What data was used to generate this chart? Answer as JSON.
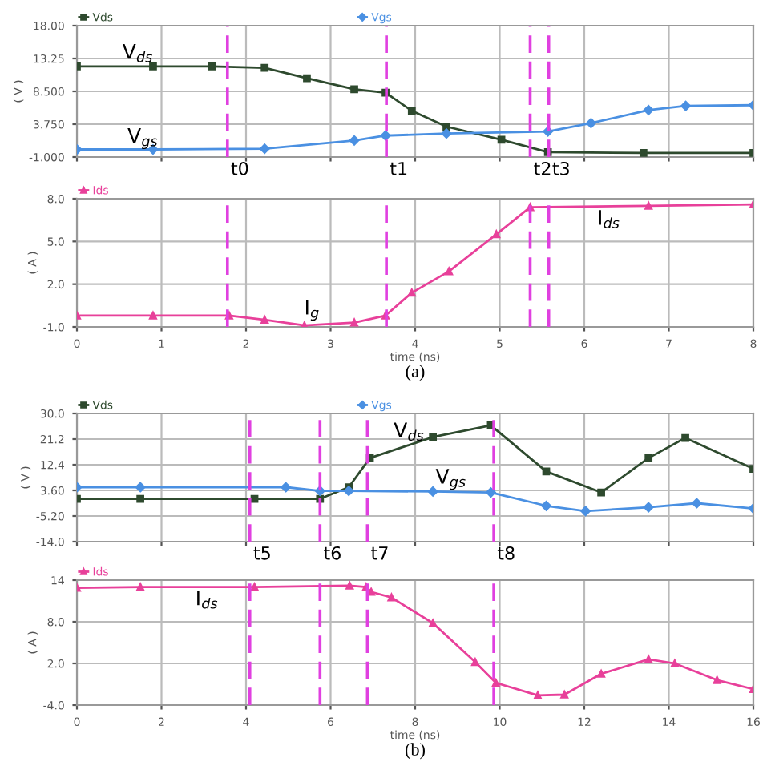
{
  "chart_data": [
    {
      "type": "line",
      "ylabel": "( V )",
      "legend": "top",
      "grid": true,
      "tick_labels": "y",
      "line_style": "solid",
      "xlim": [
        0,
        8
      ],
      "xticks": [
        0,
        1,
        2,
        3,
        4,
        5,
        6,
        7,
        8
      ],
      "ylim": [
        -1,
        18
      ],
      "yticks": [
        {
          "value": -1,
          "label": "-1.000"
        },
        {
          "value": 3.75,
          "label": "3.750"
        },
        {
          "value": 8.5,
          "label": "8.500"
        },
        {
          "value": 13.25,
          "label": "13.25"
        },
        {
          "value": 18,
          "label": "18.00"
        }
      ],
      "series": [
        {
          "name": "Vds",
          "color": "#2e4a2e",
          "marker": "square",
          "x": [
            0,
            0.9,
            1.6,
            2.22,
            2.72,
            3.28,
            3.65,
            3.96,
            4.37,
            5.02,
            5.57,
            6.7,
            8
          ],
          "values": [
            12.1,
            12.1,
            12.1,
            11.9,
            10.4,
            8.8,
            8.3,
            5.7,
            3.4,
            1.5,
            -0.3,
            -0.4,
            -0.4
          ]
        },
        {
          "name": "Vgs",
          "color": "#4a90e2",
          "marker": "diamond",
          "x": [
            0,
            0.9,
            2.22,
            3.28,
            3.65,
            4.37,
            5.57,
            6.08,
            6.76,
            7.2,
            8
          ],
          "values": [
            0.1,
            0.1,
            0.2,
            1.4,
            2.1,
            2.4,
            2.7,
            3.9,
            5.8,
            6.4,
            6.5
          ]
        }
      ],
      "ref_lines": [
        {
          "axis": "x",
          "value": 1.78,
          "label": "t0",
          "color": "#e040e0",
          "line_style": "dashed"
        },
        {
          "axis": "x",
          "value": 3.66,
          "label": "t1",
          "color": "#e040e0",
          "line_style": "dashed"
        },
        {
          "axis": "x",
          "value": 5.36,
          "label": "t2",
          "color": "#e040e0",
          "line_style": "dashed"
        },
        {
          "axis": "x",
          "value": 5.58,
          "label": "t3",
          "color": "#e040e0",
          "line_style": "dashed"
        }
      ],
      "annotations": [
        "V$_{ds}$",
        "V$_{gs}$"
      ]
    },
    {
      "type": "line",
      "ylabel": "( A )",
      "xlabel": "time (ns)",
      "legend": "top",
      "grid": true,
      "line_style": "solid",
      "xlim": [
        0,
        8
      ],
      "xticks": [
        0,
        1,
        2,
        3,
        4,
        5,
        6,
        7,
        8
      ],
      "ylim": [
        -1,
        8
      ],
      "yticks": [
        {
          "value": -1,
          "label": "-1.0"
        },
        {
          "value": 2,
          "label": "2.0"
        },
        {
          "value": 5,
          "label": "5.0"
        },
        {
          "value": 8,
          "label": "8.0"
        }
      ],
      "series": [
        {
          "name": "Ids",
          "color": "#e8409a",
          "marker": "triangle",
          "x": [
            0,
            0.9,
            1.8,
            2.22,
            2.69,
            3.28,
            3.65,
            3.96,
            4.4,
            4.96,
            5.36,
            6.76,
            8
          ],
          "values": [
            -0.2,
            -0.2,
            -0.2,
            -0.5,
            -0.9,
            -0.7,
            -0.2,
            1.4,
            2.9,
            5.5,
            7.4,
            7.5,
            7.6
          ]
        }
      ],
      "ref_lines": [
        {
          "axis": "x",
          "value": 1.78,
          "color": "#e040e0",
          "line_style": "dashed"
        },
        {
          "axis": "x",
          "value": 3.66,
          "color": "#e040e0",
          "line_style": "dashed"
        },
        {
          "axis": "x",
          "value": 5.36,
          "color": "#e040e0",
          "line_style": "dashed"
        },
        {
          "axis": "x",
          "value": 5.58,
          "color": "#e040e0",
          "line_style": "dashed"
        }
      ],
      "annotations": [
        "I$_{ds}$",
        "I$_{g}$",
        "(a)"
      ]
    },
    {
      "type": "line",
      "ylabel": "( V )",
      "legend": "top",
      "grid": true,
      "tick_labels": "y",
      "line_style": "solid",
      "xlim": [
        0,
        16
      ],
      "xticks": [
        0,
        2,
        4,
        6,
        8,
        10,
        12,
        14,
        16
      ],
      "ylim": [
        -14,
        30
      ],
      "yticks": [
        {
          "value": -14,
          "label": "-14.0"
        },
        {
          "value": -5.2,
          "label": "-5.20"
        },
        {
          "value": 3.6,
          "label": "3.60"
        },
        {
          "value": 12.4,
          "label": "12.4"
        },
        {
          "value": 21.2,
          "label": "21.2"
        },
        {
          "value": 30,
          "label": "30.0"
        }
      ],
      "series": [
        {
          "name": "Vds",
          "color": "#2e4a2e",
          "marker": "square",
          "x": [
            0,
            1.5,
            4.2,
            5.75,
            6.43,
            6.93,
            8.42,
            9.79,
            11.1,
            12.4,
            13.52,
            14.39,
            16
          ],
          "values": [
            0.7,
            0.7,
            0.7,
            0.7,
            4.7,
            14.7,
            21.9,
            25.9,
            10.1,
            2.9,
            14.7,
            21.6,
            11.0
          ]
        },
        {
          "name": "Vgs",
          "color": "#4a90e2",
          "marker": "diamond",
          "x": [
            0,
            1.5,
            4.94,
            5.75,
            6.43,
            8.42,
            9.79,
            11.1,
            12.03,
            13.52,
            14.66,
            16
          ],
          "values": [
            4.7,
            4.7,
            4.7,
            3.4,
            3.4,
            3.2,
            2.9,
            -1.7,
            -3.5,
            -2.2,
            -0.8,
            -2.6
          ]
        }
      ],
      "ref_lines": [
        {
          "axis": "x",
          "value": 4.09,
          "label": "t5",
          "color": "#e040e0",
          "line_style": "dashed"
        },
        {
          "axis": "x",
          "value": 5.75,
          "label": "t6",
          "color": "#e040e0",
          "line_style": "dashed"
        },
        {
          "axis": "x",
          "value": 6.87,
          "label": "t7",
          "color": "#e040e0",
          "line_style": "dashed"
        },
        {
          "axis": "x",
          "value": 9.86,
          "label": "t8",
          "color": "#e040e0",
          "line_style": "dashed"
        }
      ],
      "annotations": [
        "V$_{ds}$",
        "V$_{gs}$"
      ]
    },
    {
      "type": "line",
      "ylabel": "( A )",
      "xlabel": "time (ns)",
      "legend": "top",
      "grid": true,
      "line_style": "solid",
      "xlim": [
        0,
        16
      ],
      "xticks": [
        0,
        2,
        4,
        6,
        8,
        10,
        12,
        14,
        16
      ],
      "ylim": [
        -4,
        14
      ],
      "yticks": [
        {
          "value": -4,
          "label": "-4.0"
        },
        {
          "value": 2,
          "label": "2.0"
        },
        {
          "value": 8,
          "label": "8.0"
        },
        14
      ],
      "series": [
        {
          "name": "Ids",
          "color": "#e8409a",
          "marker": "triangle",
          "x": [
            0,
            1.5,
            4.2,
            6.45,
            6.84,
            6.96,
            7.44,
            8.42,
            9.42,
            9.91,
            10.9,
            11.53,
            12.4,
            13.52,
            14.14,
            15.14,
            16
          ],
          "values": [
            12.9,
            13.0,
            13.0,
            13.2,
            13.0,
            12.3,
            11.5,
            7.8,
            2.2,
            -0.8,
            -2.6,
            -2.5,
            0.5,
            2.6,
            2.0,
            -0.4,
            -1.7
          ]
        }
      ],
      "ref_lines": [
        {
          "axis": "x",
          "value": 4.09,
          "color": "#e040e0",
          "line_style": "dashed"
        },
        {
          "axis": "x",
          "value": 5.75,
          "color": "#e040e0",
          "line_style": "dashed"
        },
        {
          "axis": "x",
          "value": 6.87,
          "color": "#e040e0",
          "line_style": "dashed"
        },
        {
          "axis": "x",
          "value": 9.86,
          "color": "#e040e0",
          "line_style": "dashed"
        }
      ],
      "annotations": [
        "I$_{ds}$",
        "(b)"
      ]
    }
  ]
}
